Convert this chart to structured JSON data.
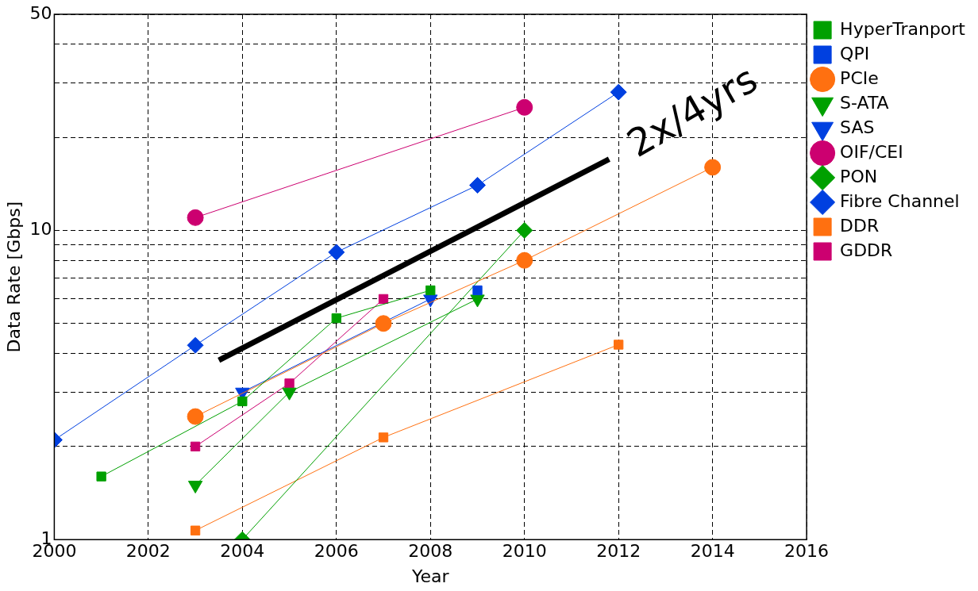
{
  "chart_data": {
    "type": "line",
    "xlabel": "Year",
    "ylabel": "Data Rate [Gbps]",
    "log": "y",
    "grid": true,
    "legend": "right",
    "line_style": "solid",
    "xlim": [
      2000,
      2016
    ],
    "xticks": [
      2000,
      2002,
      2004,
      2006,
      2008,
      2010,
      2012,
      2014,
      2016
    ],
    "ylim": [
      1,
      50
    ],
    "yticks": [
      1,
      {
        "value": 2,
        "label": null
      },
      {
        "value": 3,
        "label": null
      },
      {
        "value": 4,
        "label": null
      },
      {
        "value": 5,
        "label": null
      },
      {
        "value": 6,
        "label": null
      },
      {
        "value": 7,
        "label": null
      },
      {
        "value": 8,
        "label": null
      },
      {
        "value": 9,
        "label": null
      },
      10,
      {
        "value": 20,
        "label": null
      },
      {
        "value": 30,
        "label": null
      },
      {
        "value": 40,
        "label": null
      },
      50
    ],
    "annotations": [
      "2x/4yrs"
    ],
    "series": [
      {
        "name": "HyperTranport",
        "color": "#00a000",
        "marker": "square",
        "x": [
          2001,
          2004,
          2006,
          2008
        ],
        "values": [
          1.6,
          2.8,
          5.2,
          6.4
        ]
      },
      {
        "name": "QPI",
        "color": "#0040e0",
        "marker": "square",
        "x": [
          2009
        ],
        "values": [
          6.4
        ]
      },
      {
        "name": "PCIe",
        "color": "#ff7010",
        "marker": "circle",
        "x": [
          2003,
          2007,
          2010,
          2014
        ],
        "values": [
          2.5,
          5,
          8,
          16
        ]
      },
      {
        "name": "S-ATA",
        "color": "#00a000",
        "marker": "triangle",
        "x": [
          2003,
          2005,
          2009
        ],
        "values": [
          1.5,
          3,
          6
        ]
      },
      {
        "name": "SAS",
        "color": "#0040e0",
        "marker": "triangle",
        "x": [
          2004,
          2008
        ],
        "values": [
          3,
          6
        ]
      },
      {
        "name": "OIF/CEI",
        "color": "#cc0070",
        "marker": "circle",
        "x": [
          2003,
          2010
        ],
        "values": [
          11,
          25
        ]
      },
      {
        "name": "PON",
        "color": "#00a000",
        "marker": "diamond",
        "x": [
          2004,
          2010
        ],
        "values": [
          1,
          10
        ]
      },
      {
        "name": "Fibre Channel",
        "color": "#0040e0",
        "marker": "diamond",
        "x": [
          2000,
          2003,
          2006,
          2009,
          2012
        ],
        "values": [
          2.1,
          4.25,
          8.5,
          14,
          28
        ]
      },
      {
        "name": "DDR",
        "color": "#ff7010",
        "marker": "square",
        "x": [
          2003,
          2007,
          2012
        ],
        "values": [
          1.07,
          2.14,
          4.27
        ]
      },
      {
        "name": "GDDR",
        "color": "#cc0070",
        "marker": "square",
        "x": [
          2003,
          2005,
          2007
        ],
        "values": [
          2,
          3.2,
          6
        ]
      },
      {
        "color": "#000000",
        "marker": "none",
        "x": [
          2003.5,
          2011.8
        ],
        "values": [
          3.8,
          17
        ]
      }
    ]
  }
}
